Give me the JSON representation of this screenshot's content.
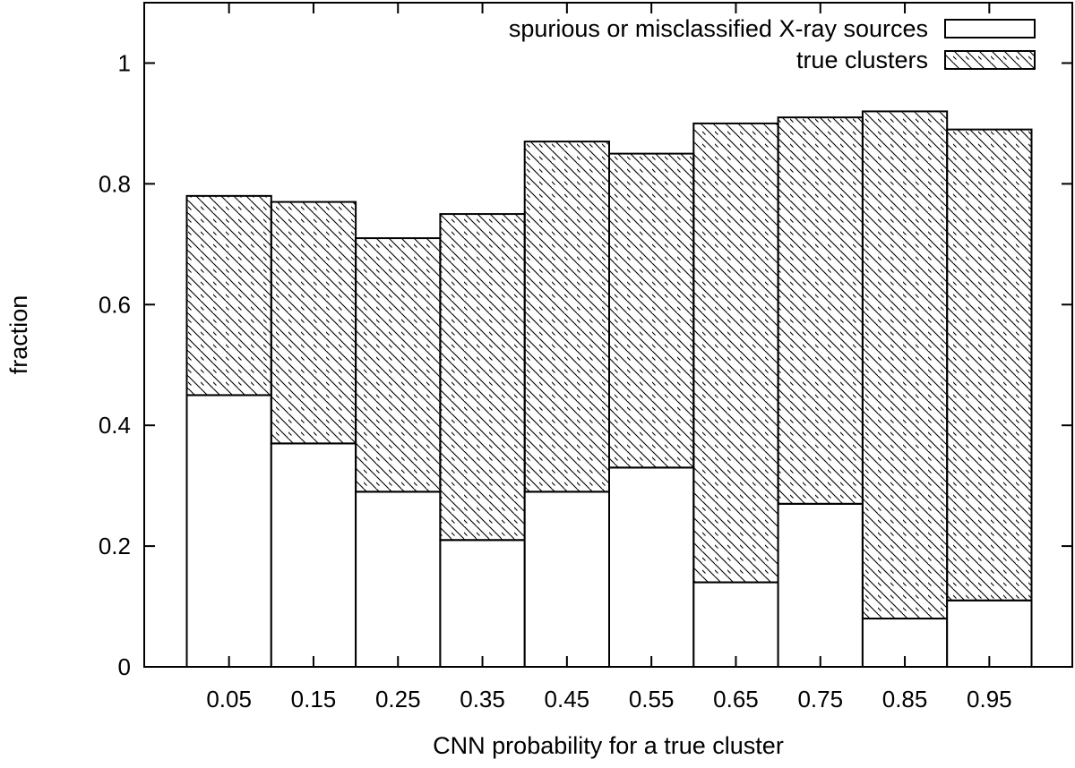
{
  "chart_data": {
    "type": "bar",
    "stacked": true,
    "title": "",
    "xlabel": "CNN probability for a true cluster",
    "ylabel": "fraction",
    "ylim": [
      0,
      1.1
    ],
    "yticks": [
      "0",
      "0.2",
      "0.4",
      "0.6",
      "0.8",
      "1"
    ],
    "categories": [
      "0.05",
      "0.15",
      "0.25",
      "0.35",
      "0.45",
      "0.55",
      "0.65",
      "0.75",
      "0.85",
      "0.95"
    ],
    "series": [
      {
        "name": "spurious or misclassified X-ray sources",
        "fill": "none",
        "values": [
          0.45,
          0.37,
          0.29,
          0.21,
          0.29,
          0.33,
          0.14,
          0.27,
          0.08,
          0.11
        ]
      },
      {
        "name": "true clusters",
        "fill": "diagonal-hatch",
        "values": [
          0.33,
          0.4,
          0.42,
          0.54,
          0.58,
          0.52,
          0.76,
          0.64,
          0.84,
          0.78
        ]
      }
    ],
    "legend_position": "top-right",
    "grid": false
  }
}
